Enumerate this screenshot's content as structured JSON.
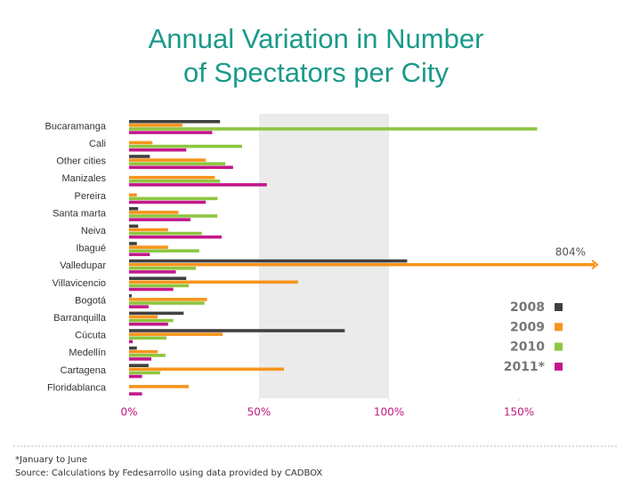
{
  "chart_data": {
    "type": "bar",
    "orientation": "horizontal",
    "title": [
      "Annual Variation in Number",
      "of Spectators per City"
    ],
    "categories": [
      "Bucaramanga",
      "Cali",
      "Other cities",
      "Manizales",
      "Pereira",
      "Santa marta",
      "Neiva",
      "Ibagué",
      "Valledupar",
      "Villavicencio",
      "Bogotá",
      "Barranquilla",
      "Cúcuta",
      "Medellín",
      "Cartagena",
      "Floridablanca"
    ],
    "series": [
      {
        "name": "2008",
        "color": "#404040",
        "values": [
          35,
          null,
          8,
          null,
          null,
          3.5,
          3.5,
          3,
          107,
          22,
          1,
          21,
          83,
          3,
          7.5,
          null
        ]
      },
      {
        "name": "2009",
        "color": "#f7941d",
        "values": [
          20.5,
          9,
          29.5,
          33,
          3,
          19,
          15,
          15,
          804,
          65,
          30,
          11,
          36,
          11,
          59.6,
          23
        ],
        "value_labels": [
          null,
          null,
          null,
          null,
          null,
          null,
          null,
          null,
          "804%",
          null,
          null,
          null,
          null,
          null,
          null,
          null
        ]
      },
      {
        "name": "2010",
        "color": "#8dc63f",
        "values": [
          157,
          43.5,
          37,
          35,
          34,
          34,
          28,
          27,
          25.7,
          23,
          29,
          17,
          14.4,
          14,
          12,
          null
        ]
      },
      {
        "name": "2011*",
        "color": "#c2188b",
        "values": [
          32,
          22,
          40,
          53,
          29.5,
          23.6,
          35.6,
          8,
          18,
          17,
          7.5,
          15,
          1.4,
          8.6,
          5,
          5
        ]
      }
    ],
    "xlim": [
      0,
      180
    ],
    "xticks": [
      {
        "value": 0,
        "label": "0%"
      },
      {
        "value": 50,
        "label": "50%"
      },
      {
        "value": 100,
        "label": "100%"
      },
      {
        "value": 150,
        "label": "150%"
      }
    ],
    "shaded_range": [
      50,
      100
    ],
    "legend": "bottom-right",
    "notes": [
      "*January to June",
      "Source: Calculations by Fedesarrollo using data provided by CADBOX"
    ]
  }
}
